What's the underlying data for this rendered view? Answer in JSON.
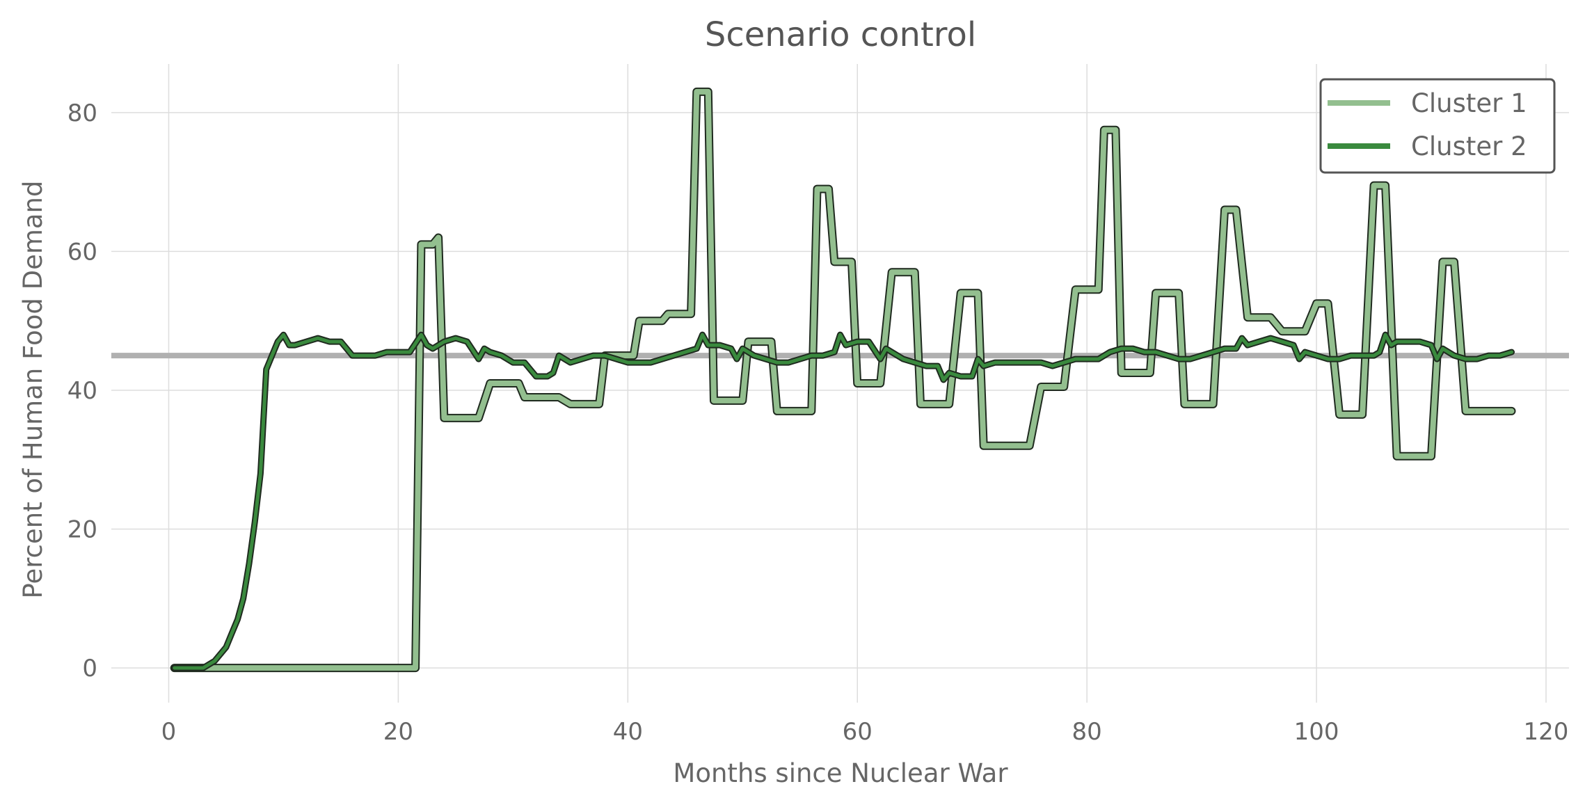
{
  "chart_data": {
    "type": "line",
    "title": "Scenario control",
    "xlabel": "Months since Nuclear War",
    "ylabel": "Percent of Human Food Demand",
    "xlim": [
      -5,
      122
    ],
    "ylim": [
      -5,
      87
    ],
    "xticks": [
      0,
      20,
      40,
      60,
      80,
      100,
      120
    ],
    "yticks": [
      0,
      20,
      40,
      60,
      80
    ],
    "grid": true,
    "legend": "top-right",
    "reference_line": {
      "y": 45,
      "color": "#b0b0b0"
    },
    "series": [
      {
        "name": "Cluster 1",
        "color": "#93bf8f",
        "style": "step",
        "points": [
          [
            0.5,
            0
          ],
          [
            21.5,
            0
          ],
          [
            22,
            61
          ],
          [
            23,
            61
          ],
          [
            23.5,
            62
          ],
          [
            24,
            36
          ],
          [
            27,
            36
          ],
          [
            28,
            41
          ],
          [
            30.5,
            41
          ],
          [
            31,
            39
          ],
          [
            34,
            39
          ],
          [
            35,
            38
          ],
          [
            37.5,
            38
          ],
          [
            38,
            45
          ],
          [
            40.5,
            45
          ],
          [
            41,
            50
          ],
          [
            43,
            50
          ],
          [
            43.5,
            51
          ],
          [
            45.5,
            51
          ],
          [
            46,
            83
          ],
          [
            47,
            83
          ],
          [
            47.5,
            38.5
          ],
          [
            50,
            38.5
          ],
          [
            50.5,
            47
          ],
          [
            52.5,
            47
          ],
          [
            53,
            37
          ],
          [
            56,
            37
          ],
          [
            56.5,
            69
          ],
          [
            57.5,
            69
          ],
          [
            58,
            58.5
          ],
          [
            59.5,
            58.5
          ],
          [
            60,
            41
          ],
          [
            62,
            41
          ],
          [
            63,
            57
          ],
          [
            65,
            57
          ],
          [
            65.5,
            38
          ],
          [
            68,
            38
          ],
          [
            69,
            54
          ],
          [
            70.5,
            54
          ],
          [
            71,
            32
          ],
          [
            73,
            32
          ],
          [
            75,
            32
          ],
          [
            76,
            40.5
          ],
          [
            78,
            40.5
          ],
          [
            79,
            54.5
          ],
          [
            81,
            54.5
          ],
          [
            81.5,
            77.5
          ],
          [
            82.5,
            77.5
          ],
          [
            83,
            42.5
          ],
          [
            85.5,
            42.5
          ],
          [
            86,
            54
          ],
          [
            88,
            54
          ],
          [
            88.5,
            38
          ],
          [
            91,
            38
          ],
          [
            92,
            66
          ],
          [
            93,
            66
          ],
          [
            94,
            50.5
          ],
          [
            96,
            50.5
          ],
          [
            97,
            48.5
          ],
          [
            99,
            48.5
          ],
          [
            100,
            52.5
          ],
          [
            101,
            52.5
          ],
          [
            102,
            36.5
          ],
          [
            104,
            36.5
          ],
          [
            105,
            69.5
          ],
          [
            106,
            69.5
          ],
          [
            107,
            30.5
          ],
          [
            110,
            30.5
          ],
          [
            111,
            58.5
          ],
          [
            112,
            58.5
          ],
          [
            113,
            37
          ],
          [
            117,
            37
          ]
        ]
      },
      {
        "name": "Cluster 2",
        "color": "#3a8a3e",
        "style": "line",
        "points": [
          [
            0.5,
            0
          ],
          [
            1,
            0
          ],
          [
            2,
            0
          ],
          [
            3,
            0
          ],
          [
            4,
            1
          ],
          [
            5,
            3
          ],
          [
            5.5,
            5
          ],
          [
            6,
            7
          ],
          [
            6.5,
            10
          ],
          [
            7,
            15
          ],
          [
            7.5,
            21
          ],
          [
            8,
            28
          ],
          [
            8.5,
            43
          ],
          [
            9,
            45
          ],
          [
            9.5,
            47
          ],
          [
            10,
            48
          ],
          [
            10.5,
            46.5
          ],
          [
            11,
            46.5
          ],
          [
            12,
            47
          ],
          [
            13,
            47.5
          ],
          [
            14,
            47
          ],
          [
            15,
            47
          ],
          [
            15.5,
            46
          ],
          [
            16,
            45
          ],
          [
            17,
            45
          ],
          [
            17.5,
            45
          ],
          [
            18,
            45
          ],
          [
            19,
            45.5
          ],
          [
            20,
            45.5
          ],
          [
            21,
            45.5
          ],
          [
            22,
            48
          ],
          [
            22.5,
            46.5
          ],
          [
            23,
            46
          ],
          [
            24,
            47
          ],
          [
            25,
            47.5
          ],
          [
            26,
            47
          ],
          [
            27,
            44.5
          ],
          [
            27.5,
            46
          ],
          [
            28,
            45.5
          ],
          [
            29,
            45
          ],
          [
            30,
            44
          ],
          [
            31,
            44
          ],
          [
            32,
            42
          ],
          [
            33,
            42
          ],
          [
            33.5,
            42.5
          ],
          [
            34,
            45
          ],
          [
            35,
            44
          ],
          [
            36,
            44.5
          ],
          [
            37,
            45
          ],
          [
            38,
            45
          ],
          [
            39,
            44.5
          ],
          [
            40,
            44
          ],
          [
            41,
            44
          ],
          [
            42,
            44
          ],
          [
            43,
            44.5
          ],
          [
            44,
            45
          ],
          [
            45,
            45.5
          ],
          [
            46,
            46
          ],
          [
            46.5,
            48
          ],
          [
            47,
            46.5
          ],
          [
            48,
            46.5
          ],
          [
            49,
            46
          ],
          [
            49.5,
            44.5
          ],
          [
            50,
            46
          ],
          [
            51,
            45
          ],
          [
            52,
            44.5
          ],
          [
            53,
            44
          ],
          [
            54,
            44
          ],
          [
            55,
            44.5
          ],
          [
            56,
            45
          ],
          [
            57,
            45
          ],
          [
            58,
            45.5
          ],
          [
            58.5,
            48
          ],
          [
            59,
            46.5
          ],
          [
            60,
            47
          ],
          [
            61,
            47
          ],
          [
            62,
            44.5
          ],
          [
            62.5,
            46
          ],
          [
            63,
            45.5
          ],
          [
            64,
            44.5
          ],
          [
            65,
            44
          ],
          [
            66,
            43.5
          ],
          [
            67,
            43.5
          ],
          [
            67.5,
            41.5
          ],
          [
            68,
            42.5
          ],
          [
            69,
            42
          ],
          [
            70,
            42
          ],
          [
            70.5,
            44.5
          ],
          [
            71,
            43.5
          ],
          [
            72,
            44
          ],
          [
            73,
            44
          ],
          [
            74,
            44
          ],
          [
            75,
            44
          ],
          [
            76,
            44
          ],
          [
            77,
            43.5
          ],
          [
            78,
            44
          ],
          [
            79,
            44.5
          ],
          [
            80,
            44.5
          ],
          [
            81,
            44.5
          ],
          [
            82,
            45.5
          ],
          [
            83,
            46
          ],
          [
            84,
            46
          ],
          [
            85,
            45.5
          ],
          [
            86,
            45.5
          ],
          [
            87,
            45
          ],
          [
            88,
            44.5
          ],
          [
            89,
            44.5
          ],
          [
            90,
            45
          ],
          [
            91,
            45.5
          ],
          [
            92,
            46
          ],
          [
            93,
            46
          ],
          [
            93.5,
            47.5
          ],
          [
            94,
            46.5
          ],
          [
            95,
            47
          ],
          [
            96,
            47.5
          ],
          [
            97,
            47
          ],
          [
            98,
            46.5
          ],
          [
            98.5,
            44.5
          ],
          [
            99,
            45.5
          ],
          [
            100,
            45
          ],
          [
            101,
            44.5
          ],
          [
            102,
            44.5
          ],
          [
            103,
            45
          ],
          [
            104,
            45
          ],
          [
            105,
            45
          ],
          [
            105.5,
            45.5
          ],
          [
            106,
            48
          ],
          [
            106.5,
            46.5
          ],
          [
            107,
            47
          ],
          [
            108,
            47
          ],
          [
            109,
            47
          ],
          [
            110,
            46.5
          ],
          [
            110.5,
            44.5
          ],
          [
            111,
            46
          ],
          [
            112,
            45
          ],
          [
            113,
            44.5
          ],
          [
            114,
            44.5
          ],
          [
            115,
            45
          ],
          [
            116,
            45
          ],
          [
            117,
            45.5
          ]
        ]
      }
    ]
  }
}
